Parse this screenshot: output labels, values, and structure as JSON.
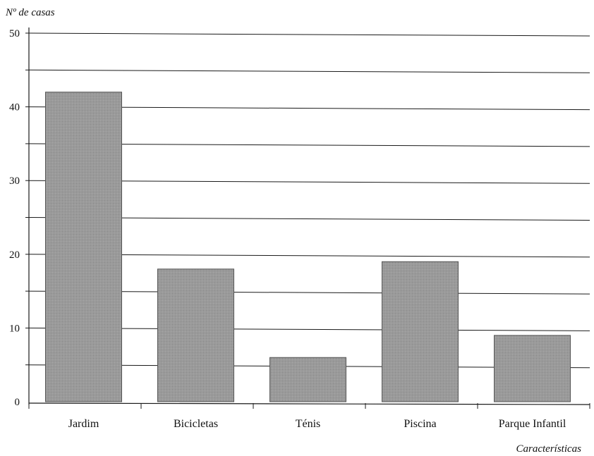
{
  "chart_data": {
    "type": "bar",
    "title": "",
    "ylabel": "Nº de casas",
    "xlabel": "Características",
    "categories": [
      "Jardim",
      "Bicicletas",
      "Ténis",
      "Piscina",
      "Parque Infantil"
    ],
    "values": [
      42,
      18,
      6,
      19,
      9
    ],
    "ylim": [
      0,
      50
    ],
    "yticks": [
      "0",
      "10",
      "20",
      "30",
      "40",
      "50"
    ],
    "grid": true,
    "grid_step": 5,
    "legend": "none",
    "colors": {
      "bar_fill": "#9a9a9a",
      "bar_stroke": "#555555",
      "grid": "#1a1a1a",
      "axis": "#1a1a1a"
    }
  }
}
